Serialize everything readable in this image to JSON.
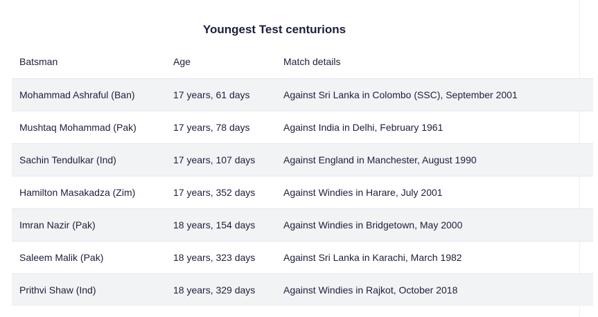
{
  "title": "Youngest Test centurions",
  "headers": [
    "Batsman",
    "Age",
    "Match details"
  ],
  "rows": [
    [
      "Mohammad Ashraful (Ban)",
      "17 years, 61 days",
      "Against Sri Lanka in Colombo (SSC), September 2001"
    ],
    [
      "Mushtaq Mohammad (Pak)",
      "17 years, 78 days",
      "Against India in Delhi, February 1961"
    ],
    [
      "Sachin Tendulkar (Ind)",
      "17 years, 107 days",
      "Against England in Manchester, August 1990"
    ],
    [
      "Hamilton Masakadza (Zim)",
      "17 years, 352 days",
      "Against Windies in Harare, July 2001"
    ],
    [
      "Imran Nazir (Pak)",
      "18 years, 154 days",
      "Against Windies in Bridgetown, May 2000"
    ],
    [
      "Saleem Malik (Pak)",
      "18 years, 323 days",
      "Against Sri Lanka in Karachi, March 1982"
    ],
    [
      "Prithvi Shaw (Ind)",
      "18 years, 329 days",
      "Against Windies in Rajkot, October 2018"
    ]
  ]
}
